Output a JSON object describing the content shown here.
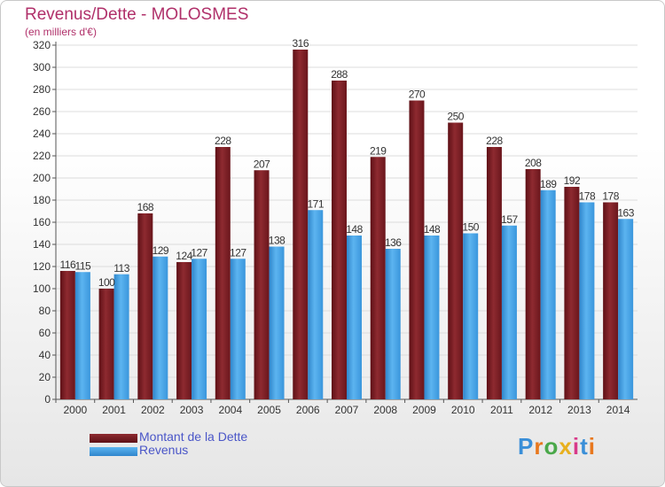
{
  "title": "Revenus/Dette - MOLOSMES",
  "subtitle": "(en milliers d'€)",
  "logo": {
    "text": "Proxiti",
    "letter_colors": [
      "#3a8fd8",
      "#e8781e",
      "#4aa84a",
      "#e8b01e",
      "#d83a8a",
      "#3a8fd8",
      "#e8781e"
    ]
  },
  "chart_data": {
    "type": "bar",
    "categories": [
      "2000",
      "2001",
      "2002",
      "2003",
      "2004",
      "2005",
      "2006",
      "2007",
      "2008",
      "2009",
      "2010",
      "2011",
      "2012",
      "2013",
      "2014"
    ],
    "series": [
      {
        "name": "Montant de la Dette",
        "color": "#7a1c24",
        "values": [
          116,
          100,
          168,
          124,
          228,
          207,
          316,
          288,
          219,
          270,
          250,
          228,
          208,
          192,
          178
        ]
      },
      {
        "name": "Revenus",
        "color": "#3c9ae0",
        "values": [
          115,
          113,
          129,
          127,
          127,
          138,
          171,
          148,
          136,
          148,
          150,
          157,
          189,
          178,
          163
        ]
      }
    ],
    "ylim": [
      0,
      320
    ],
    "yticks": [
      0,
      20,
      40,
      60,
      80,
      100,
      120,
      140,
      160,
      180,
      200,
      220,
      240,
      260,
      280,
      300,
      320
    ],
    "grid": true,
    "legend_position": "bottom-left"
  }
}
